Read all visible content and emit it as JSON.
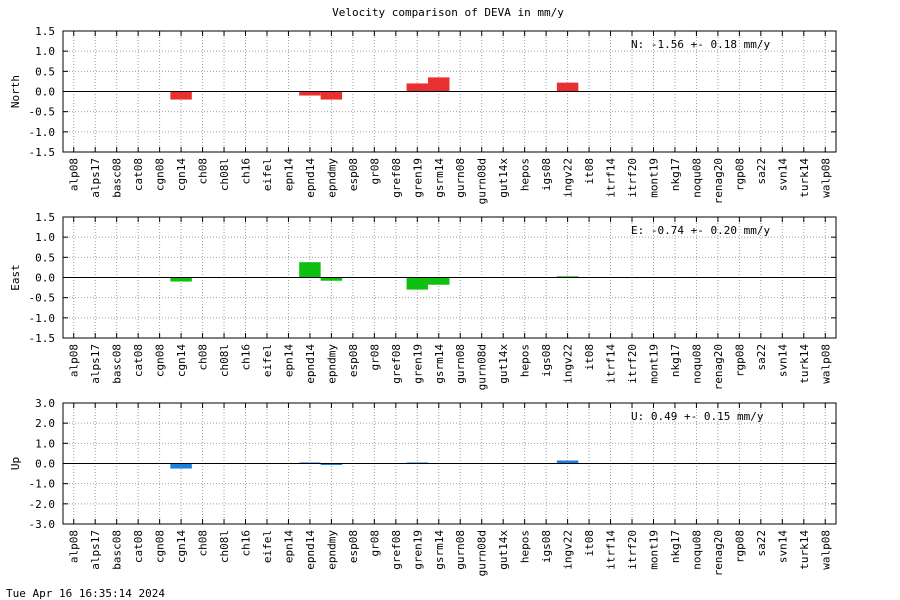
{
  "title": "Velocity comparison of DEVA in mm/y",
  "timestamp": "Tue Apr 16 16:35:14 2024",
  "chart_data": [
    {
      "type": "bar",
      "ylabel": "North",
      "ylim": [
        -1.5,
        1.5
      ],
      "yticks": [
        1.5,
        1.0,
        0.5,
        0.0,
        -0.5,
        -1.0,
        -1.5
      ],
      "color": "#e83030",
      "annotation": "N:  -1.56 +-  0.18 mm/y",
      "grid": true,
      "categories": [
        "alp08",
        "alps17",
        "basc08",
        "cat08",
        "cgn08",
        "cgn14",
        "ch08",
        "ch08l",
        "ch16",
        "eifel",
        "epn14",
        "epnd14",
        "epndmy",
        "esp08",
        "gr08",
        "gref08",
        "gren19",
        "gsrm14",
        "gurn08",
        "gurn08d",
        "gut14x",
        "hepos",
        "igs08",
        "ingv22",
        "it08",
        "itrf14",
        "itrf20",
        "mont19",
        "nkg17",
        "noqu08",
        "renag20",
        "rgp08",
        "sa22",
        "svn14",
        "turk14",
        "walp08"
      ],
      "values": [
        null,
        null,
        null,
        null,
        null,
        -0.2,
        null,
        null,
        null,
        null,
        null,
        -0.1,
        -0.2,
        null,
        null,
        null,
        0.2,
        0.35,
        null,
        null,
        null,
        null,
        null,
        0.22,
        null,
        null,
        null,
        null,
        null,
        null,
        null,
        null,
        null,
        null,
        null,
        null
      ]
    },
    {
      "type": "bar",
      "ylabel": "East",
      "ylim": [
        -1.5,
        1.5
      ],
      "yticks": [
        1.5,
        1.0,
        0.5,
        0.0,
        -0.5,
        -1.0,
        -1.5
      ],
      "color": "#10c010",
      "annotation": "E:  -0.74 +-  0.20 mm/y",
      "grid": true,
      "categories": [
        "alp08",
        "alps17",
        "basc08",
        "cat08",
        "cgn08",
        "cgn14",
        "ch08",
        "ch08l",
        "ch16",
        "eifel",
        "epn14",
        "epnd14",
        "epndmy",
        "esp08",
        "gr08",
        "gref08",
        "gren19",
        "gsrm14",
        "gurn08",
        "gurn08d",
        "gut14x",
        "hepos",
        "igs08",
        "ingv22",
        "it08",
        "itrf14",
        "itrf20",
        "mont19",
        "nkg17",
        "noqu08",
        "renag20",
        "rgp08",
        "sa22",
        "svn14",
        "turk14",
        "walp08"
      ],
      "values": [
        null,
        null,
        null,
        null,
        null,
        -0.1,
        null,
        null,
        null,
        null,
        null,
        0.38,
        -0.08,
        null,
        null,
        null,
        -0.3,
        -0.18,
        null,
        null,
        null,
        null,
        null,
        0.03,
        null,
        null,
        null,
        null,
        null,
        null,
        null,
        null,
        null,
        null,
        null,
        null
      ]
    },
    {
      "type": "bar",
      "ylabel": "Up",
      "ylim": [
        -3.0,
        3.0
      ],
      "yticks": [
        3.0,
        2.0,
        1.0,
        0.0,
        -1.0,
        -2.0,
        -3.0
      ],
      "color": "#1a80e0",
      "annotation": "U:   0.49 +-  0.15 mm/y",
      "grid": true,
      "categories": [
        "alp08",
        "alps17",
        "basc08",
        "cat08",
        "cgn08",
        "cgn14",
        "ch08",
        "ch08l",
        "ch16",
        "eifel",
        "epn14",
        "epnd14",
        "epndmy",
        "esp08",
        "gr08",
        "gref08",
        "gren19",
        "gsrm14",
        "gurn08",
        "gurn08d",
        "gut14x",
        "hepos",
        "igs08",
        "ingv22",
        "it08",
        "itrf14",
        "itrf20",
        "mont19",
        "nkg17",
        "noqu08",
        "renag20",
        "rgp08",
        "sa22",
        "svn14",
        "turk14",
        "walp08"
      ],
      "values": [
        null,
        null,
        null,
        null,
        null,
        -0.25,
        null,
        null,
        null,
        null,
        null,
        0.05,
        -0.05,
        null,
        null,
        null,
        0.05,
        null,
        null,
        null,
        null,
        null,
        null,
        0.15,
        null,
        null,
        null,
        null,
        null,
        null,
        null,
        null,
        null,
        null,
        null,
        null
      ]
    }
  ]
}
